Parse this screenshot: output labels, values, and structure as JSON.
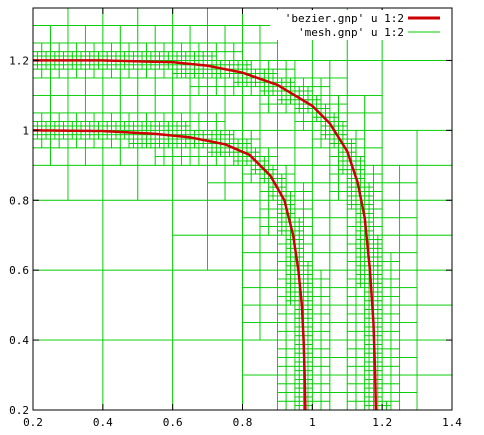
{
  "chart_data": {
    "type": "line",
    "title": "",
    "xlabel": "",
    "ylabel": "",
    "xlim": [
      0.2,
      1.4
    ],
    "ylim": [
      0.2,
      1.35
    ],
    "xticks": [
      "0.2",
      "0.4",
      "0.6",
      "0.8",
      "1",
      "1.2",
      "1.4"
    ],
    "yticks": [
      "0.2",
      "0.4",
      "0.6",
      "0.8",
      "1",
      "1.2"
    ],
    "grid": false,
    "legend_position": "top-right",
    "colors": {
      "bezier": "#cc0000",
      "mesh": "#00cc00"
    },
    "series": [
      {
        "name": "'bezier.gnp' u 1:2",
        "style": "thick-line",
        "curves": [
          [
            [
              0.2,
              1.2
            ],
            [
              0.4,
              1.2
            ],
            [
              0.6,
              1.195
            ],
            [
              0.7,
              1.185
            ],
            [
              0.8,
              1.165
            ],
            [
              0.9,
              1.13
            ],
            [
              1.0,
              1.07
            ],
            [
              1.05,
              1.02
            ],
            [
              1.1,
              0.94
            ],
            [
              1.13,
              0.85
            ],
            [
              1.15,
              0.75
            ],
            [
              1.165,
              0.6
            ],
            [
              1.175,
              0.45
            ],
            [
              1.18,
              0.3
            ],
            [
              1.182,
              0.2
            ]
          ],
          [
            [
              0.2,
              1.0
            ],
            [
              0.4,
              0.998
            ],
            [
              0.55,
              0.99
            ],
            [
              0.65,
              0.98
            ],
            [
              0.75,
              0.96
            ],
            [
              0.82,
              0.93
            ],
            [
              0.88,
              0.87
            ],
            [
              0.92,
              0.8
            ],
            [
              0.945,
              0.7
            ],
            [
              0.96,
              0.6
            ],
            [
              0.97,
              0.5
            ],
            [
              0.975,
              0.4
            ],
            [
              0.978,
              0.3
            ],
            [
              0.98,
              0.2
            ]
          ]
        ]
      },
      {
        "name": "'mesh.gnp' u 1:2",
        "style": "thin-line",
        "description_of_values": "adaptive quadtree mesh refined along both curves"
      }
    ]
  }
}
